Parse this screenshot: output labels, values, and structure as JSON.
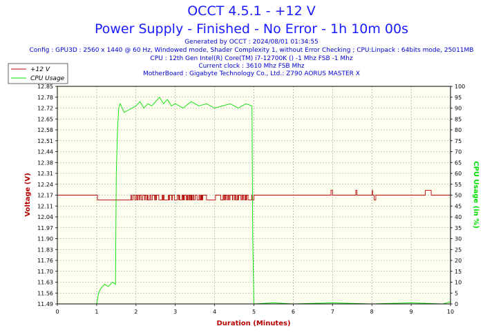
{
  "header": {
    "title": "OCCT 4.5.1 - +12 V",
    "subtitle": "Power Supply - Finished - No Error - 1h 10m 00s",
    "info_lines": [
      "Generated by OCCT : 2024/08/01 01:34:55",
      "Config : GPU3D : 2560 x 1440 @ 60 Hz, Windowed mode, Shader Complexity 1, without Error Checking ; CPU:Linpack : 64bits mode, 25011MB",
      "CPU : 12th Gen Intel(R) Core(TM) i7-12700K () -1 Mhz FSB -1 Mhz",
      "Current clock : 3610 Mhz FSB  Mhz",
      "MotherBoard : Gigabyte Technology Co., Ltd.: Z790 AORUS MASTER X"
    ]
  },
  "colors": {
    "voltage": "#b40000",
    "cpu": "#00e000",
    "plot_bg": "#fffff0",
    "title": "#1a1aff",
    "info": "#0000cc"
  },
  "chart_data": {
    "type": "line",
    "xlabel": "Duration (Minutes)",
    "ylabel": "Voltage (V)",
    "y2label": "CPU Usage (in %)",
    "xlim": [
      0,
      10
    ],
    "ylim": [
      11.49,
      12.85
    ],
    "y2lim": [
      0,
      100
    ],
    "x_ticks": [
      "0",
      "1",
      "2",
      "3",
      "4",
      "5",
      "6",
      "7",
      "8",
      "9",
      "10"
    ],
    "y_ticks": [
      "11.49",
      "11.56",
      "11.63",
      "11.70",
      "11.76",
      "11.83",
      "11.90",
      "11.97",
      "12.04",
      "12.11",
      "12.17",
      "12.24",
      "12.31",
      "12.38",
      "12.44",
      "12.51",
      "12.58",
      "12.65",
      "12.72",
      "12.78",
      "12.85"
    ],
    "y_tick_values": [
      11.49,
      11.56,
      11.63,
      11.7,
      11.76,
      11.83,
      11.9,
      11.97,
      12.04,
      12.11,
      12.17,
      12.24,
      12.31,
      12.38,
      12.44,
      12.51,
      12.58,
      12.65,
      12.72,
      12.78,
      12.85
    ],
    "y2_ticks": [
      "0",
      "5",
      "10",
      "15",
      "20",
      "25",
      "30",
      "35",
      "40",
      "45",
      "50",
      "55",
      "60",
      "65",
      "70",
      "75",
      "80",
      "85",
      "90",
      "95",
      "100"
    ],
    "grid": true,
    "legend": {
      "position": "top-left"
    },
    "series": [
      {
        "name": "+12 V",
        "axis": "left",
        "x": [
          0,
          1.0,
          1.02,
          2.0,
          2.01,
          4.95,
          5.0,
          6.95,
          6.96,
          7.0,
          7.58,
          7.59,
          7.62,
          8.0,
          8.01,
          8.02,
          8.05,
          8.06,
          8.1,
          9.35,
          9.36,
          9.5,
          9.51,
          10
        ],
        "y": [
          12.17,
          12.17,
          12.14,
          12.14,
          12.17,
          12.14,
          12.17,
          12.17,
          12.2,
          12.17,
          12.17,
          12.2,
          12.17,
          12.17,
          12.2,
          12.17,
          12.17,
          12.14,
          12.17,
          12.17,
          12.2,
          12.2,
          12.17,
          12.17
        ],
        "fluctuation_band": {
          "x_range": [
            1.85,
            4.95
          ],
          "low": 12.14,
          "high": 12.17
        }
      },
      {
        "name": "CPU Usage",
        "axis": "right",
        "x": [
          0,
          0.95,
          1.0,
          1.05,
          1.1,
          1.2,
          1.3,
          1.4,
          1.48,
          1.5,
          1.53,
          1.56,
          1.6,
          1.7,
          1.8,
          1.9,
          2.0,
          2.1,
          2.2,
          2.3,
          2.4,
          2.5,
          2.6,
          2.7,
          2.8,
          2.9,
          3.0,
          3.2,
          3.4,
          3.6,
          3.8,
          4.0,
          4.2,
          4.4,
          4.6,
          4.8,
          4.95,
          4.97,
          5.0,
          5.5,
          6.0,
          7.0,
          8.0,
          9.0,
          9.8,
          10
        ],
        "y": [
          0,
          0,
          0,
          5,
          7,
          9,
          8,
          10,
          9,
          60,
          80,
          90,
          92,
          88,
          89,
          90,
          91,
          93,
          90,
          92,
          91,
          93,
          95,
          92,
          94,
          91,
          92,
          90,
          93,
          91,
          92,
          90,
          91,
          92,
          90,
          92,
          91,
          30,
          0,
          0.5,
          0,
          0.5,
          0,
          0.5,
          0,
          1
        ]
      }
    ]
  }
}
